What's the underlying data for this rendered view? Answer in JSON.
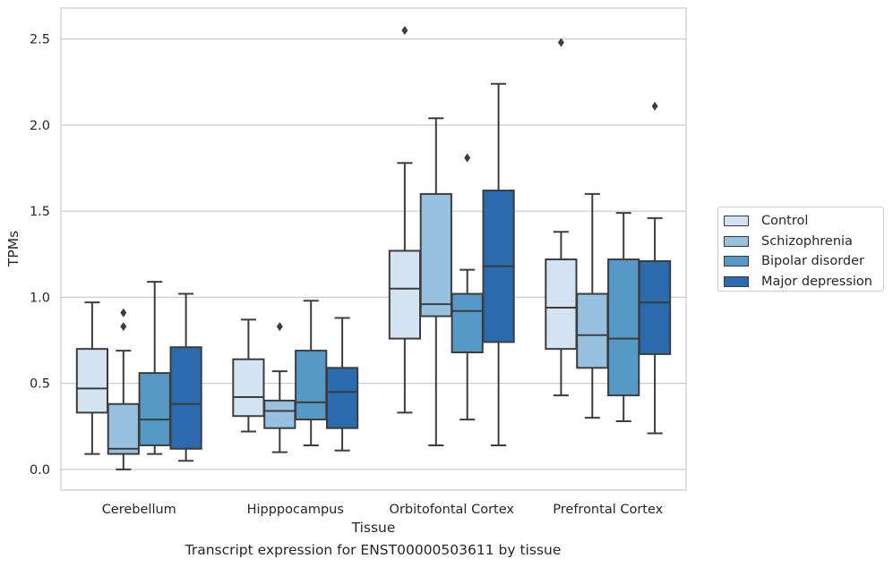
{
  "chart_data": {
    "type": "box",
    "caption": "Transcript expression for ENST00000503611 by tissue",
    "xlabel": "Tissue",
    "ylabel": "TPMs",
    "ylim": [
      -0.12,
      2.68
    ],
    "yticks": [
      0.0,
      0.5,
      1.0,
      1.5,
      2.0,
      2.5
    ],
    "ytick_labels": [
      "0.0",
      "0.5",
      "1.0",
      "1.5",
      "2.0",
      "2.5"
    ],
    "grid": "horizontal",
    "legend_position": "right",
    "categories": [
      "Cerebellum",
      "Hipppocampus",
      "Orbitofontal Cortex",
      "Prefrontal Cortex"
    ],
    "series": [
      {
        "name": "Control",
        "color": "#d4e3f1",
        "boxes": [
          {
            "whisker_low": 0.09,
            "q1": 0.33,
            "median": 0.47,
            "q3": 0.7,
            "whisker_high": 0.97,
            "outliers": []
          },
          {
            "whisker_low": 0.22,
            "q1": 0.31,
            "median": 0.42,
            "q3": 0.64,
            "whisker_high": 0.87,
            "outliers": []
          },
          {
            "whisker_low": 0.33,
            "q1": 0.76,
            "median": 1.05,
            "q3": 1.27,
            "whisker_high": 1.78,
            "outliers": [
              2.55
            ]
          },
          {
            "whisker_low": 0.43,
            "q1": 0.7,
            "median": 0.94,
            "q3": 1.22,
            "whisker_high": 1.38,
            "outliers": [
              2.48
            ]
          }
        ]
      },
      {
        "name": "Schizophrenia",
        "color": "#97c1de",
        "boxes": [
          {
            "whisker_low": 0.0,
            "q1": 0.09,
            "median": 0.12,
            "q3": 0.38,
            "whisker_high": 0.69,
            "outliers": [
              0.83,
              0.91
            ]
          },
          {
            "whisker_low": 0.1,
            "q1": 0.24,
            "median": 0.34,
            "q3": 0.4,
            "whisker_high": 0.57,
            "outliers": [
              0.83
            ]
          },
          {
            "whisker_low": 0.14,
            "q1": 0.89,
            "median": 0.96,
            "q3": 1.6,
            "whisker_high": 2.04,
            "outliers": []
          },
          {
            "whisker_low": 0.3,
            "q1": 0.59,
            "median": 0.78,
            "q3": 1.02,
            "whisker_high": 1.6,
            "outliers": []
          }
        ]
      },
      {
        "name": "Bipolar disorder",
        "color": "#5799c6",
        "boxes": [
          {
            "whisker_low": 0.09,
            "q1": 0.14,
            "median": 0.29,
            "q3": 0.56,
            "whisker_high": 1.09,
            "outliers": []
          },
          {
            "whisker_low": 0.14,
            "q1": 0.29,
            "median": 0.39,
            "q3": 0.69,
            "whisker_high": 0.98,
            "outliers": []
          },
          {
            "whisker_low": 0.29,
            "q1": 0.68,
            "median": 0.92,
            "q3": 1.02,
            "whisker_high": 1.16,
            "outliers": [
              1.81
            ]
          },
          {
            "whisker_low": 0.28,
            "q1": 0.43,
            "median": 0.76,
            "q3": 1.22,
            "whisker_high": 1.49,
            "outliers": []
          }
        ]
      },
      {
        "name": "Major depression",
        "color": "#2a6aad",
        "boxes": [
          {
            "whisker_low": 0.05,
            "q1": 0.12,
            "median": 0.38,
            "q3": 0.71,
            "whisker_high": 1.02,
            "outliers": []
          },
          {
            "whisker_low": 0.11,
            "q1": 0.24,
            "median": 0.45,
            "q3": 0.59,
            "whisker_high": 0.88,
            "outliers": []
          },
          {
            "whisker_low": 0.14,
            "q1": 0.74,
            "median": 1.18,
            "q3": 1.62,
            "whisker_high": 2.24,
            "outliers": []
          },
          {
            "whisker_low": 0.21,
            "q1": 0.67,
            "median": 0.97,
            "q3": 1.21,
            "whisker_high": 1.46,
            "outliers": [
              2.11
            ]
          }
        ]
      }
    ]
  }
}
